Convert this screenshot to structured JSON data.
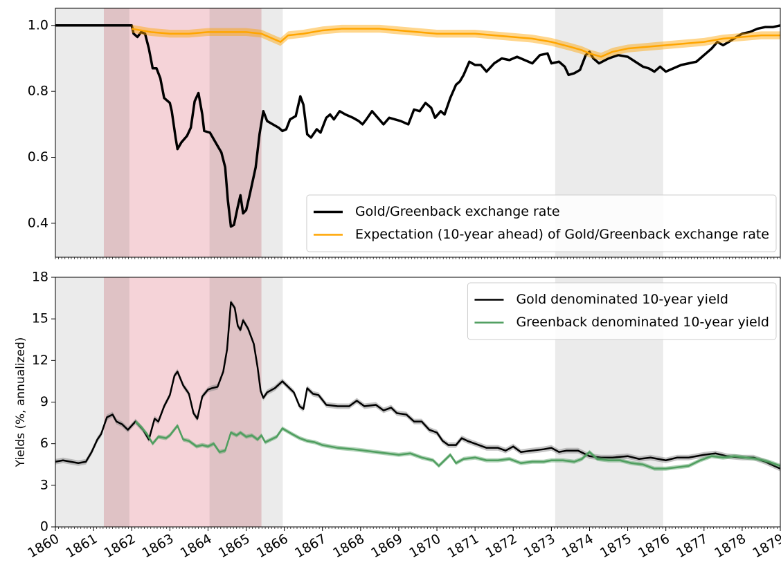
{
  "chart_data": [
    {
      "type": "line",
      "xlim": [
        1860,
        1879
      ],
      "ylim": [
        0.297,
        1.052
      ],
      "yticks": [
        0.4,
        0.6,
        0.8,
        {
          "value": 1,
          "label": "1.0"
        }
      ],
      "legend": "lower right",
      "shaded_regions": [
        {
          "x": [
            1860,
            1865.96
          ],
          "color": "#ebebeb"
        },
        {
          "x": [
            1873.1,
            1875.93
          ],
          "color": "#ebebeb"
        },
        {
          "x": [
            1861.27,
            1865.4
          ],
          "color": "#f5d3d8"
        },
        {
          "x": [
            1861.27,
            1861.94
          ],
          "color": "#dfc2c5"
        },
        {
          "x": [
            1864.04,
            1865.4
          ],
          "color": "#dfc2c5"
        }
      ],
      "series": [
        {
          "name": "Gold/Greenback exchange rate",
          "color": "#000000",
          "x": [
            1860,
            1862.0,
            1862.05,
            1862.15,
            1862.25,
            1862.35,
            1862.45,
            1862.55,
            1862.65,
            1862.75,
            1862.85,
            1863.0,
            1863.05,
            1863.15,
            1863.2,
            1863.3,
            1863.45,
            1863.55,
            1863.65,
            1863.75,
            1863.85,
            1863.9,
            1864.05,
            1864.2,
            1864.35,
            1864.45,
            1864.52,
            1864.6,
            1864.68,
            1864.78,
            1864.85,
            1864.92,
            1865.0,
            1865.1,
            1865.25,
            1865.35,
            1865.45,
            1865.55,
            1865.7,
            1865.85,
            1865.95,
            1866.05,
            1866.15,
            1866.3,
            1866.42,
            1866.5,
            1866.6,
            1866.7,
            1866.85,
            1866.95,
            1867.1,
            1867.2,
            1867.3,
            1867.45,
            1867.6,
            1867.8,
            1867.95,
            1868.05,
            1868.15,
            1868.3,
            1868.45,
            1868.6,
            1868.75,
            1868.9,
            1869.05,
            1869.25,
            1869.4,
            1869.55,
            1869.7,
            1869.85,
            1869.95,
            1870.1,
            1870.2,
            1870.35,
            1870.5,
            1870.6,
            1870.7,
            1870.85,
            1871.0,
            1871.15,
            1871.3,
            1871.5,
            1871.7,
            1871.9,
            1872.1,
            1872.3,
            1872.5,
            1872.7,
            1872.9,
            1873.0,
            1873.2,
            1873.35,
            1873.45,
            1873.6,
            1873.75,
            1873.9,
            1874.0,
            1874.1,
            1874.25,
            1874.5,
            1874.75,
            1875.0,
            1875.2,
            1875.4,
            1875.55,
            1875.7,
            1875.85,
            1876.0,
            1876.2,
            1876.4,
            1876.6,
            1876.8,
            1877.0,
            1877.2,
            1877.35,
            1877.5,
            1877.65,
            1877.85,
            1878.0,
            1878.2,
            1878.4,
            1878.6,
            1878.8,
            1879.0
          ],
          "values": [
            1.0,
            1.0,
            0.975,
            0.965,
            0.98,
            0.975,
            0.93,
            0.87,
            0.87,
            0.84,
            0.78,
            0.765,
            0.74,
            0.66,
            0.625,
            0.645,
            0.665,
            0.69,
            0.77,
            0.795,
            0.73,
            0.68,
            0.675,
            0.645,
            0.615,
            0.57,
            0.47,
            0.39,
            0.395,
            0.45,
            0.485,
            0.43,
            0.44,
            0.49,
            0.57,
            0.67,
            0.74,
            0.71,
            0.7,
            0.69,
            0.68,
            0.685,
            0.715,
            0.725,
            0.785,
            0.76,
            0.67,
            0.66,
            0.685,
            0.675,
            0.72,
            0.73,
            0.715,
            0.74,
            0.73,
            0.72,
            0.71,
            0.7,
            0.715,
            0.74,
            0.72,
            0.7,
            0.72,
            0.715,
            0.71,
            0.7,
            0.745,
            0.74,
            0.765,
            0.75,
            0.72,
            0.74,
            0.73,
            0.78,
            0.82,
            0.83,
            0.85,
            0.89,
            0.88,
            0.88,
            0.86,
            0.885,
            0.9,
            0.895,
            0.905,
            0.895,
            0.885,
            0.91,
            0.915,
            0.885,
            0.89,
            0.875,
            0.85,
            0.855,
            0.865,
            0.91,
            0.92,
            0.9,
            0.885,
            0.9,
            0.91,
            0.905,
            0.89,
            0.875,
            0.87,
            0.86,
            0.875,
            0.86,
            0.87,
            0.88,
            0.885,
            0.89,
            0.91,
            0.93,
            0.95,
            0.94,
            0.95,
            0.965,
            0.975,
            0.98,
            0.99,
            0.995,
            0.995,
            1.0
          ]
        },
        {
          "name": "Expectation (10-year ahead) of Gold/Greenback exchange rate",
          "color": "#ffa500",
          "band": 0.012,
          "x": [
            1862.0,
            1862.5,
            1863,
            1863.5,
            1864,
            1864.5,
            1865,
            1865.4,
            1865.6,
            1865.9,
            1866.1,
            1866.5,
            1867,
            1867.5,
            1868,
            1868.5,
            1869,
            1869.5,
            1870,
            1870.5,
            1871,
            1871.5,
            1872,
            1872.5,
            1873,
            1873.5,
            1873.8,
            1874.0,
            1874.3,
            1874.6,
            1875,
            1875.5,
            1876,
            1876.5,
            1877,
            1877.5,
            1878,
            1878.5,
            1879
          ],
          "values": [
            0.99,
            0.98,
            0.975,
            0.975,
            0.98,
            0.98,
            0.98,
            0.975,
            0.965,
            0.95,
            0.97,
            0.975,
            0.985,
            0.99,
            0.99,
            0.99,
            0.985,
            0.98,
            0.975,
            0.975,
            0.975,
            0.97,
            0.965,
            0.96,
            0.95,
            0.935,
            0.925,
            0.915,
            0.905,
            0.92,
            0.93,
            0.935,
            0.94,
            0.945,
            0.95,
            0.96,
            0.965,
            0.97,
            0.97
          ]
        }
      ]
    },
    {
      "type": "line",
      "ylabel": "Yields (%, annualized)",
      "xlim": [
        1860,
        1879
      ],
      "xticks": [
        1860,
        1861,
        1862,
        1863,
        1864,
        1865,
        1866,
        1867,
        1868,
        1869,
        1870,
        1871,
        1872,
        1873,
        1874,
        1875,
        1876,
        1877,
        1878,
        1879
      ],
      "ylim": [
        0,
        18
      ],
      "yticks": [
        0,
        3,
        6,
        9,
        12,
        15,
        18
      ],
      "legend": "upper right",
      "shaded_regions": [
        {
          "x": [
            1860,
            1865.96
          ],
          "color": "#ebebeb"
        },
        {
          "x": [
            1873.1,
            1875.93
          ],
          "color": "#ebebeb"
        },
        {
          "x": [
            1861.27,
            1865.4
          ],
          "color": "#f5d3d8"
        },
        {
          "x": [
            1861.27,
            1861.94
          ],
          "color": "#dfc2c5"
        },
        {
          "x": [
            1864.04,
            1865.4
          ],
          "color": "#dfc2c5"
        }
      ],
      "series": [
        {
          "name": "Gold denominated 10-year yield",
          "color": "#000000",
          "band": 0.2,
          "x": [
            1860,
            1860.2,
            1860.4,
            1860.6,
            1860.8,
            1860.95,
            1861.1,
            1861.2,
            1861.35,
            1861.5,
            1861.6,
            1861.75,
            1861.9,
            1862.0,
            1862.1,
            1862.3,
            1862.45,
            1862.6,
            1862.7,
            1862.85,
            1863.0,
            1863.12,
            1863.2,
            1863.35,
            1863.5,
            1863.62,
            1863.72,
            1863.85,
            1864.0,
            1864.1,
            1864.25,
            1864.4,
            1864.5,
            1864.6,
            1864.7,
            1864.78,
            1864.85,
            1864.92,
            1865.05,
            1865.2,
            1865.3,
            1865.38,
            1865.45,
            1865.55,
            1865.75,
            1865.95,
            1866.1,
            1866.25,
            1866.4,
            1866.5,
            1866.6,
            1866.75,
            1866.9,
            1867.1,
            1867.4,
            1867.7,
            1867.9,
            1868.1,
            1868.4,
            1868.6,
            1868.8,
            1868.95,
            1869.2,
            1869.4,
            1869.6,
            1869.8,
            1870.0,
            1870.15,
            1870.3,
            1870.5,
            1870.65,
            1870.8,
            1871.0,
            1871.3,
            1871.6,
            1871.8,
            1872.0,
            1872.2,
            1872.5,
            1872.8,
            1873.0,
            1873.2,
            1873.4,
            1873.7,
            1874.0,
            1874.3,
            1874.6,
            1875.0,
            1875.3,
            1875.6,
            1876.0,
            1876.3,
            1876.6,
            1877.0,
            1877.3,
            1877.6,
            1878.0,
            1878.3,
            1878.6,
            1879.0
          ],
          "values": [
            4.7,
            4.8,
            4.7,
            4.6,
            4.7,
            5.4,
            6.3,
            6.7,
            7.9,
            8.1,
            7.6,
            7.4,
            7.0,
            7.3,
            7.6,
            7.0,
            6.3,
            7.8,
            7.6,
            8.7,
            9.5,
            10.9,
            11.2,
            10.2,
            9.6,
            8.2,
            7.8,
            9.4,
            9.9,
            10.0,
            10.1,
            11.2,
            12.8,
            16.2,
            15.8,
            14.5,
            14.2,
            14.9,
            14.3,
            13.2,
            11.5,
            9.8,
            9.3,
            9.7,
            10.0,
            10.5,
            10.1,
            9.7,
            8.7,
            8.5,
            10.0,
            9.6,
            9.5,
            8.8,
            8.7,
            8.7,
            9.1,
            8.7,
            8.8,
            8.4,
            8.6,
            8.2,
            8.1,
            7.6,
            7.6,
            7.0,
            6.8,
            6.2,
            5.9,
            5.9,
            6.4,
            6.2,
            6.0,
            5.7,
            5.7,
            5.5,
            5.8,
            5.4,
            5.5,
            5.6,
            5.7,
            5.4,
            5.5,
            5.5,
            5.1,
            5.0,
            5.0,
            5.1,
            4.9,
            5.0,
            4.8,
            5.0,
            5.0,
            5.2,
            5.3,
            5.1,
            5.0,
            5.0,
            4.7,
            4.2
          ]
        },
        {
          "name": "Greenback denominated 10-year yield",
          "color": "#4f9e5f",
          "band": 0.15,
          "x": [
            1862.1,
            1862.25,
            1862.4,
            1862.55,
            1862.7,
            1862.9,
            1863.0,
            1863.2,
            1863.35,
            1863.5,
            1863.7,
            1863.85,
            1864.0,
            1864.15,
            1864.3,
            1864.45,
            1864.6,
            1864.75,
            1864.85,
            1865.0,
            1865.15,
            1865.3,
            1865.4,
            1865.5,
            1865.8,
            1865.95,
            1866.2,
            1866.4,
            1866.6,
            1866.8,
            1867.0,
            1867.4,
            1867.8,
            1868.1,
            1868.4,
            1868.7,
            1869.0,
            1869.3,
            1869.6,
            1869.9,
            1870.05,
            1870.2,
            1870.35,
            1870.5,
            1870.7,
            1871.0,
            1871.3,
            1871.6,
            1871.9,
            1872.2,
            1872.5,
            1872.8,
            1873.0,
            1873.3,
            1873.6,
            1873.8,
            1874.0,
            1874.2,
            1874.5,
            1874.8,
            1875.1,
            1875.4,
            1875.7,
            1876.0,
            1876.3,
            1876.6,
            1876.9,
            1877.2,
            1877.5,
            1877.8,
            1878.1,
            1878.4,
            1878.7,
            1879.0
          ],
          "values": [
            7.6,
            7.2,
            6.7,
            6.0,
            6.5,
            6.4,
            6.6,
            7.3,
            6.3,
            6.2,
            5.8,
            5.9,
            5.8,
            6.0,
            5.4,
            5.5,
            6.8,
            6.6,
            6.8,
            6.5,
            6.6,
            6.3,
            6.6,
            6.1,
            6.5,
            7.1,
            6.7,
            6.4,
            6.2,
            6.1,
            5.9,
            5.7,
            5.6,
            5.5,
            5.4,
            5.3,
            5.2,
            5.3,
            5.0,
            4.8,
            4.4,
            4.8,
            5.2,
            4.6,
            4.9,
            5.0,
            4.8,
            4.8,
            4.9,
            4.6,
            4.7,
            4.7,
            4.8,
            4.8,
            4.7,
            4.9,
            5.4,
            4.9,
            4.8,
            4.8,
            4.6,
            4.5,
            4.2,
            4.2,
            4.3,
            4.4,
            4.8,
            5.1,
            5.0,
            5.1,
            5.0,
            4.9,
            4.7,
            4.4
          ]
        }
      ]
    }
  ]
}
